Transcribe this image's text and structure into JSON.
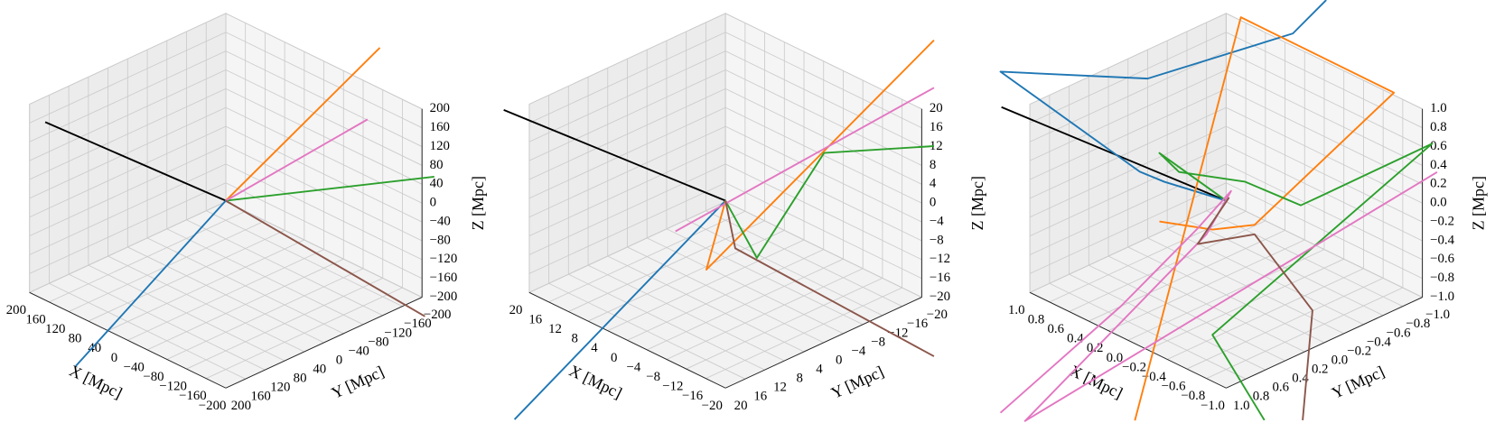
{
  "chart_data": [
    {
      "type": "line3d",
      "xlabel": "X [Mpc]",
      "ylabel": "Y [Mpc]",
      "zlabel": "Z [Mpc]",
      "xlim": [
        -200,
        200
      ],
      "ylim": [
        -200,
        200
      ],
      "zlim": [
        -200,
        200
      ],
      "xticks": [
        {
          "value": -200,
          "label": "−200"
        },
        {
          "value": -160,
          "label": "−160"
        },
        {
          "value": -120,
          "label": "−120"
        },
        {
          "value": -80,
          "label": "−80"
        },
        {
          "value": -40,
          "label": "−40"
        },
        0,
        40,
        80,
        120,
        160,
        200
      ],
      "yticks": [
        {
          "value": -200,
          "label": "−200"
        },
        {
          "value": -160,
          "label": "−160"
        },
        {
          "value": -120,
          "label": "−120"
        },
        {
          "value": -80,
          "label": "−80"
        },
        {
          "value": -40,
          "label": "−40"
        },
        0,
        40,
        80,
        120,
        160,
        200
      ],
      "zticks": [
        {
          "value": -200,
          "label": "−200"
        },
        {
          "value": -160,
          "label": "−160"
        },
        {
          "value": -120,
          "label": "−120"
        },
        {
          "value": -80,
          "label": "−80"
        },
        {
          "value": -40,
          "label": "−40"
        },
        0,
        40,
        80,
        120,
        160,
        200
      ],
      "grid": true,
      "series": [
        {
          "color": "#000000",
          "x": [
            0,
            348
          ],
          "y": [
            0,
            20
          ],
          "z": [
            0,
            0
          ]
        },
        {
          "color": "#1f77b4",
          "x": [
            0,
            -206
          ],
          "y": [
            0,
            512
          ],
          "z": [
            0,
            0
          ]
        },
        {
          "color": "#ff7f0e",
          "x": [
            0,
            -160
          ],
          "y": [
            0,
            -154
          ],
          "z": [
            0,
            332
          ]
        },
        {
          "color": "#2ca02c",
          "x": [
            0,
            -200
          ],
          "y": [
            0,
            -225
          ],
          "z": [
            0,
            44
          ]
        },
        {
          "color": "#e377c2",
          "x": [
            0,
            -140
          ],
          "y": [
            0,
            -149
          ],
          "z": [
            0,
            172
          ]
        },
        {
          "color": "#8c564b",
          "x": [
            0,
            -446
          ],
          "y": [
            0,
            40
          ],
          "z": [
            0,
            0
          ]
        }
      ]
    },
    {
      "type": "line3d",
      "xlabel": "X [Mpc]",
      "ylabel": "Y [Mpc]",
      "zlabel": "Z [Mpc]",
      "xlim": [
        -20,
        20
      ],
      "ylim": [
        -20,
        20
      ],
      "zlim": [
        -20,
        20
      ],
      "xticks": [
        {
          "value": -20,
          "label": "−20"
        },
        {
          "value": -16,
          "label": "−16"
        },
        {
          "value": -12,
          "label": "−12"
        },
        {
          "value": -8,
          "label": "−8"
        },
        {
          "value": -4,
          "label": "−4"
        },
        0,
        4,
        8,
        12,
        16,
        20
      ],
      "yticks": [
        {
          "value": -20,
          "label": "−20"
        },
        {
          "value": -16,
          "label": "−16"
        },
        {
          "value": -12,
          "label": "−12"
        },
        {
          "value": -8,
          "label": "−8"
        },
        {
          "value": -4,
          "label": "−4"
        },
        0,
        4,
        8,
        12,
        16,
        20
      ],
      "zticks": [
        {
          "value": -20,
          "label": "−20"
        },
        {
          "value": -16,
          "label": "−16"
        },
        {
          "value": -12,
          "label": "−12"
        },
        {
          "value": -8,
          "label": "−8"
        },
        {
          "value": -4,
          "label": "−4"
        },
        0,
        4,
        8,
        12,
        16,
        20
      ],
      "grid": true,
      "series": [
        {
          "color": "#000000",
          "x": [
            0,
            41.5
          ],
          "y": [
            0,
            3.7
          ],
          "z": [
            0,
            0
          ]
        },
        {
          "color": "#1f77b4",
          "x": [
            0,
            -26
          ],
          "y": [
            0,
            69
          ],
          "z": [
            0,
            0
          ]
        },
        {
          "color": "#ff7f0e",
          "x": [
            0,
            -2.8,
            -20
          ],
          "y": [
            0,
            6.7,
            -22.5
          ],
          "z": [
            0,
            -10,
            33.4
          ]
        },
        {
          "color": "#2ca02c",
          "x": [
            0,
            -5.3,
            -5.6,
            -20
          ],
          "y": [
            0,
            -1.1,
            -14.5,
            -22.5
          ],
          "z": [
            0,
            -10,
            6,
            10.9
          ]
        },
        {
          "color": "#e377c2",
          "x": [
            -1.6,
            -20
          ],
          "y": [
            11.8,
            -22.5
          ],
          "z": [
            0,
            23.3
          ]
        },
        {
          "color": "#8c564b",
          "x": [
            0,
            -1.1,
            -44
          ],
          "y": [
            0,
            -0.9,
            1.5
          ],
          "z": [
            0,
            -10,
            -10
          ]
        }
      ]
    },
    {
      "type": "line3d",
      "xlabel": "X [Mpc]",
      "ylabel": "Y [Mpc]",
      "zlabel": "Z [Mpc]",
      "xlim": [
        -1,
        1
      ],
      "ylim": [
        -1,
        1
      ],
      "zlim": [
        -1,
        1
      ],
      "xticks": [
        {
          "value": -1,
          "label": "−1.0"
        },
        {
          "value": -0.8,
          "label": "−0.8"
        },
        {
          "value": -0.6,
          "label": "−0.6"
        },
        {
          "value": -0.4,
          "label": "−0.4"
        },
        {
          "value": -0.2,
          "label": "−0.2"
        },
        {
          "value": 0,
          "label": "0.0"
        },
        0.2,
        0.4,
        0.6,
        0.8,
        {
          "value": 1,
          "label": "1.0"
        }
      ],
      "yticks": [
        {
          "value": -1,
          "label": "−1.0"
        },
        {
          "value": -0.8,
          "label": "−0.8"
        },
        {
          "value": -0.6,
          "label": "−0.6"
        },
        {
          "value": -0.4,
          "label": "−0.4"
        },
        {
          "value": -0.2,
          "label": "−0.2"
        },
        {
          "value": 0,
          "label": "0.0"
        },
        0.2,
        0.4,
        0.6,
        0.8,
        {
          "value": 1,
          "label": "1.0"
        }
      ],
      "zticks": [
        {
          "value": -1,
          "label": "−1.0"
        },
        {
          "value": -0.8,
          "label": "−0.8"
        },
        {
          "value": -0.6,
          "label": "−0.6"
        },
        {
          "value": -0.4,
          "label": "−0.4"
        },
        {
          "value": -0.2,
          "label": "−0.2"
        },
        {
          "value": 0,
          "label": "0.0"
        },
        0.2,
        0.4,
        0.6,
        0.8,
        {
          "value": 1,
          "label": "1.0"
        }
      ],
      "grid": true,
      "series": [
        {
          "color": "#000000",
          "x": [
            0,
            2.12
          ],
          "y": [
            0,
            0.17
          ],
          "z": [
            0,
            0
          ]
        },
        {
          "color": "#1f77b4",
          "x": [
            0,
            0.51,
            0.74,
            2.0,
            0.69,
            0.15,
            0.04
          ],
          "y": [
            0,
            0.12,
            0.14,
            0.3,
            0.11,
            -0.83,
            -1.06
          ],
          "z": [
            0,
            0,
            0,
            0.5,
            1.0,
            1.3,
            1.6
          ]
        },
        {
          "color": "#ff7f0e",
          "x": [
            0.31,
            -0.04,
            -0.4,
            -0.28,
            0.38,
            -0.39
          ],
          "y": [
            0.37,
            0.18,
            0.11,
            -1.43,
            -0.53,
            1.32
          ],
          "z": [
            -0.2,
            -0.2,
            0,
            0.6,
            1.5,
            -1.5
          ]
        },
        {
          "color": "#2ca02c",
          "x": [
            -1.03,
            -0.36,
            -0.41,
            -0.42,
            -0.42,
            -0.09,
            0.34,
            0.54,
            0
          ],
          "y": [
            0.64,
            0.5,
            -1.69,
            -0.55,
            -0.34,
            -0.1,
            0.14,
            0.14,
            0
          ],
          "z": [
            -1.5,
            -1,
            0,
            0,
            0,
            0.2,
            0.2,
            0.3,
            0
          ]
        },
        {
          "color": "#e377c2",
          "x": [
            0.36,
            0.2,
            0.04,
            0.08,
            0.04,
            0.15,
            -0.74
          ],
          "y": [
            1.94,
            0.87,
            0.26,
            -0.13,
            0.16,
            1.9,
            -1.41
          ],
          "z": [
            -1.5,
            -0.8,
            -0.2,
            0,
            -0.3,
            -1.5,
            0
          ]
        },
        {
          "color": "#8c564b",
          "x": [
            -1.22,
            -1.0,
            -0.3,
            -0.02,
            0.02
          ],
          "y": [
            0.44,
            0.12,
            0.01,
            0.31,
            -0.05
          ],
          "z": [
            -1.5,
            -0.6,
            -0.2,
            -0.3,
            0
          ]
        }
      ]
    }
  ]
}
